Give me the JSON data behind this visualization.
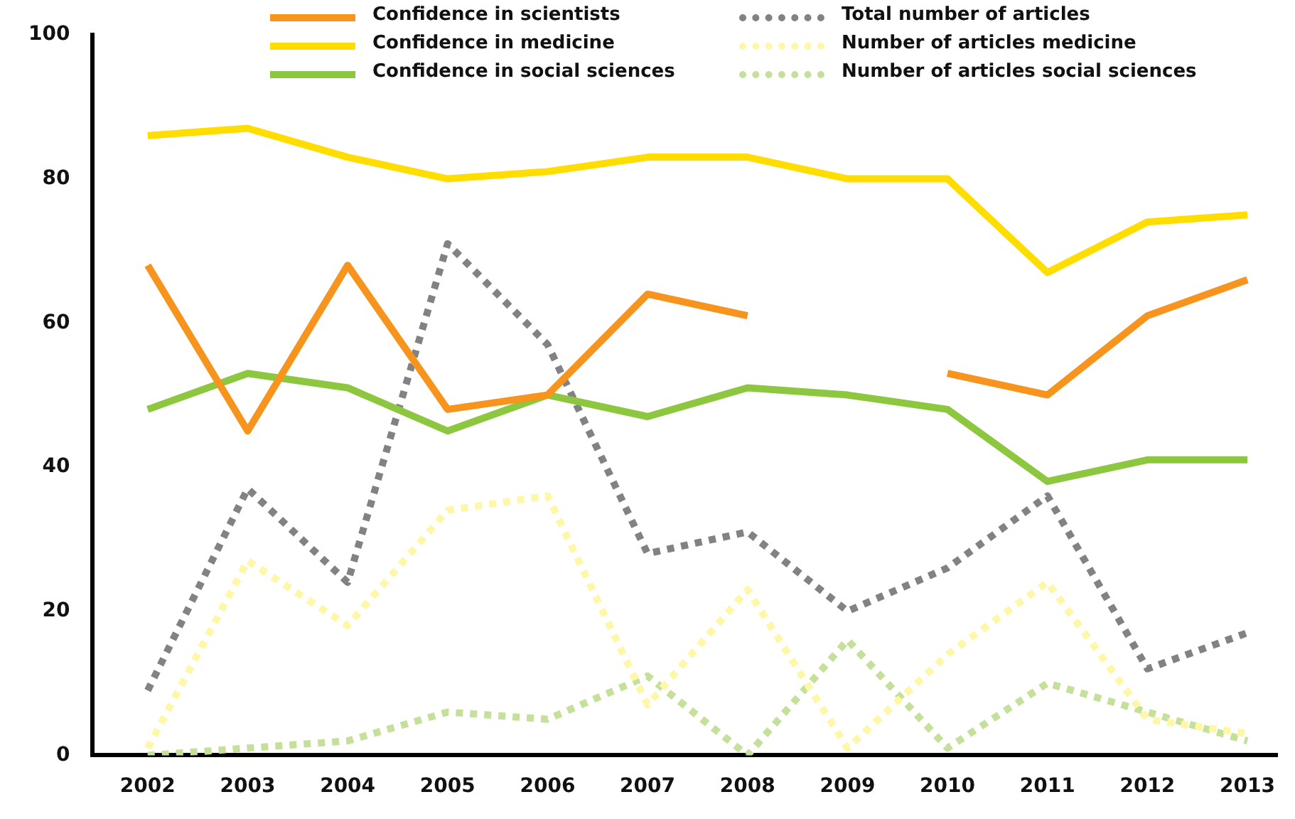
{
  "chart_data": {
    "type": "line",
    "x": [
      2002,
      2003,
      2004,
      2005,
      2006,
      2007,
      2008,
      2009,
      2010,
      2011,
      2012,
      2013
    ],
    "xlim": [
      2001.45,
      2013.3
    ],
    "xticks": [
      2002,
      2003,
      2004,
      2005,
      2006,
      2007,
      2008,
      2009,
      2010,
      2011,
      2012,
      2013
    ],
    "ylim": [
      0,
      100
    ],
    "yticks": [
      0,
      20,
      40,
      60,
      80,
      100
    ],
    "grid": false,
    "legend": "top",
    "marker": "none",
    "series": [
      {
        "name": "Confidence in scientists",
        "color": "#f7941d",
        "line_style": "solid",
        "values": [
          68,
          45,
          68,
          48,
          50,
          64,
          61,
          null,
          53,
          50,
          61,
          66
        ]
      },
      {
        "name": "Confidence in medicine",
        "color": "#ffdd00",
        "line_style": "solid",
        "values": [
          86,
          87,
          83,
          80,
          81,
          83,
          83,
          80,
          80,
          67,
          74,
          75
        ]
      },
      {
        "name": "Confidence in social sciences",
        "color": "#8dc63f",
        "line_style": "solid",
        "values": [
          48,
          53,
          51,
          45,
          50,
          47,
          51,
          50,
          48,
          38,
          41,
          41
        ]
      },
      {
        "name": "Total number of articles",
        "color": "#808285",
        "line_style": "dotted",
        "values": [
          9,
          37,
          24,
          71,
          57,
          28,
          31,
          20,
          26,
          36,
          12,
          17
        ]
      },
      {
        "name": "Number of articles medicine",
        "color": "#fff7a8",
        "line_style": "dotted",
        "values": [
          1,
          27,
          18,
          34,
          36,
          7,
          23,
          1,
          14,
          24,
          5,
          3
        ]
      },
      {
        "name": "Number of articles social sciences",
        "color": "#c5e09a",
        "line_style": "dotted",
        "values": [
          0,
          1,
          2,
          6,
          5,
          11,
          0,
          16,
          1,
          10,
          6,
          2
        ]
      }
    ]
  }
}
